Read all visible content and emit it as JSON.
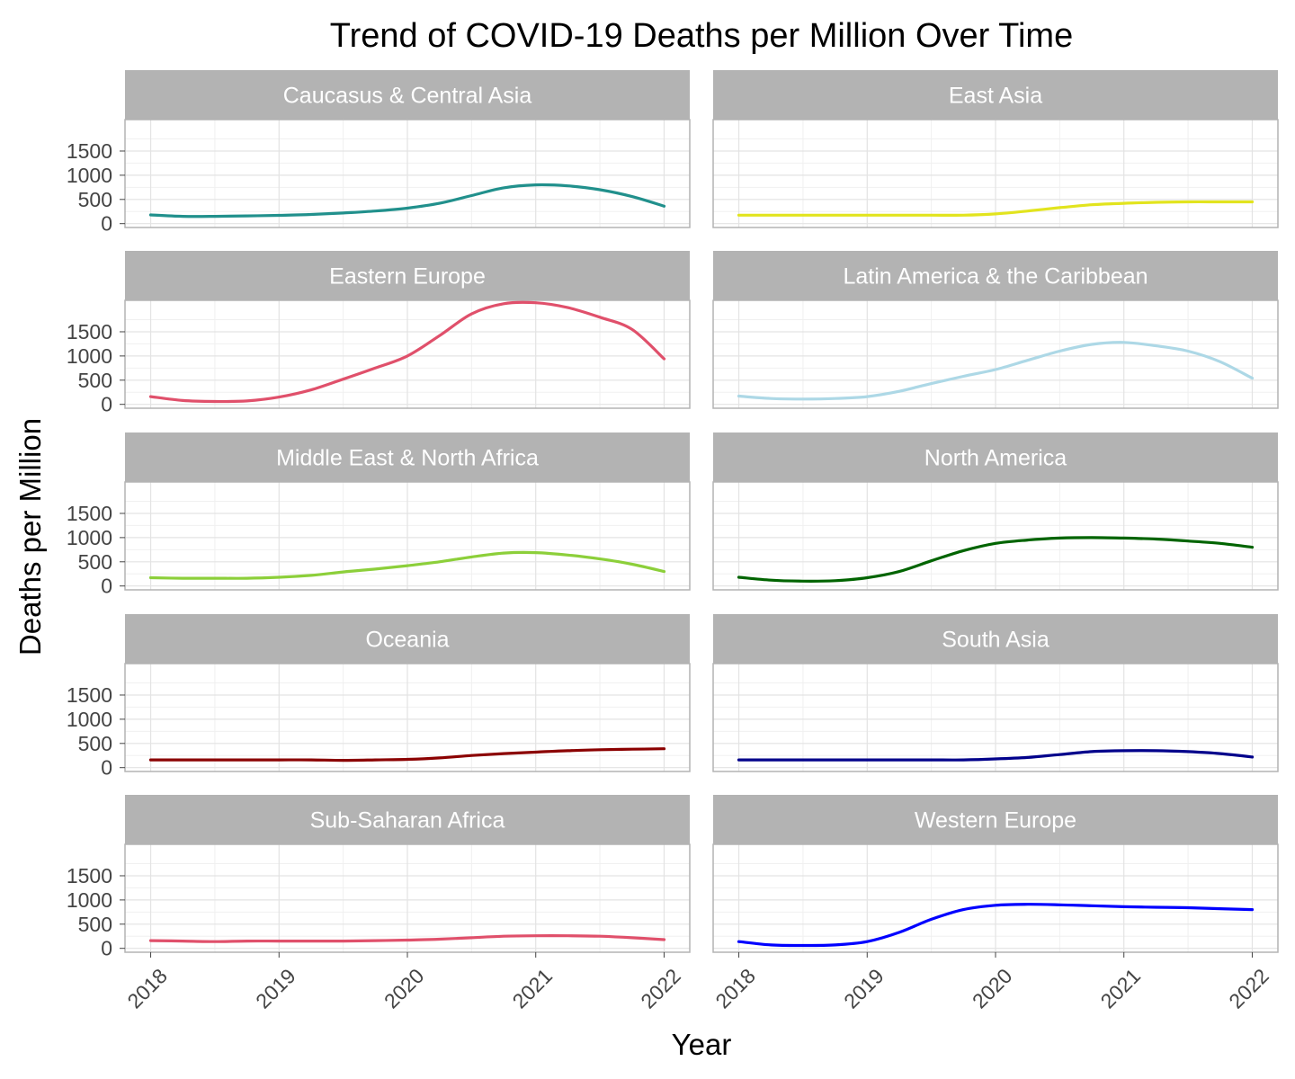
{
  "chart_data": {
    "type": "line",
    "title": "Trend of COVID-19 Deaths per Million Over Time",
    "xlabel": "Year",
    "ylabel": "Deaths per Million",
    "xlim": [
      2017.8,
      2022.2
    ],
    "ylim": [
      -80,
      2150
    ],
    "x_ticks": [
      "2018",
      "2019",
      "2020",
      "2021",
      "2022"
    ],
    "y_ticks": [
      "0",
      "500",
      "1000",
      "1500"
    ],
    "x_tick_values": [
      2018,
      2019,
      2020,
      2021,
      2022
    ],
    "y_tick_values": [
      0,
      500,
      1000,
      1500
    ],
    "grid": true,
    "legend": "none",
    "x": [
      2018,
      2018.25,
      2018.5,
      2018.75,
      2019,
      2019.25,
      2019.5,
      2019.75,
      2020,
      2020.25,
      2020.5,
      2020.75,
      2021,
      2021.25,
      2021.5,
      2021.75,
      2022
    ],
    "panels": [
      {
        "name": "Caucasus & Central Asia",
        "color": "#21908c",
        "values": [
          180,
          150,
          150,
          160,
          170,
          190,
          220,
          260,
          320,
          420,
          580,
          740,
          800,
          780,
          700,
          560,
          360
        ]
      },
      {
        "name": "East Asia",
        "color": "#e2e41e",
        "values": [
          175,
          175,
          175,
          175,
          175,
          175,
          175,
          175,
          200,
          260,
          330,
          390,
          420,
          440,
          450,
          450,
          450
        ]
      },
      {
        "name": "Eastern Europe",
        "color": "#e0506b",
        "values": [
          160,
          80,
          60,
          70,
          150,
          300,
          520,
          750,
          1000,
          1420,
          1870,
          2080,
          2100,
          2000,
          1800,
          1550,
          940
        ]
      },
      {
        "name": "Latin America & the Caribbean",
        "color": "#add8e6",
        "values": [
          170,
          120,
          110,
          120,
          160,
          270,
          430,
          580,
          720,
          910,
          1100,
          1240,
          1280,
          1210,
          1100,
          880,
          540
        ]
      },
      {
        "name": "Middle East & North Africa",
        "color": "#8ccf3a",
        "values": [
          170,
          160,
          160,
          160,
          180,
          220,
          290,
          350,
          420,
          500,
          600,
          680,
          690,
          640,
          560,
          450,
          300
        ]
      },
      {
        "name": "North America",
        "color": "#006400",
        "values": [
          180,
          120,
          100,
          110,
          170,
          300,
          520,
          730,
          880,
          950,
          990,
          1000,
          990,
          970,
          930,
          880,
          800
        ]
      },
      {
        "name": "Oceania",
        "color": "#8b0000",
        "values": [
          160,
          160,
          160,
          160,
          160,
          160,
          150,
          160,
          170,
          200,
          250,
          290,
          320,
          350,
          370,
          380,
          390
        ]
      },
      {
        "name": "South Asia",
        "color": "#00008b",
        "values": [
          160,
          160,
          160,
          160,
          160,
          160,
          160,
          160,
          180,
          210,
          270,
          330,
          350,
          350,
          330,
          290,
          220
        ]
      },
      {
        "name": "Sub-Saharan Africa",
        "color": "#e0506b",
        "values": [
          160,
          150,
          140,
          150,
          150,
          150,
          150,
          160,
          170,
          190,
          220,
          250,
          260,
          260,
          250,
          220,
          180
        ]
      },
      {
        "name": "Western Europe",
        "color": "#0000ff",
        "values": [
          140,
          70,
          60,
          70,
          140,
          330,
          600,
          800,
          890,
          910,
          900,
          880,
          860,
          850,
          840,
          820,
          800
        ]
      }
    ]
  }
}
